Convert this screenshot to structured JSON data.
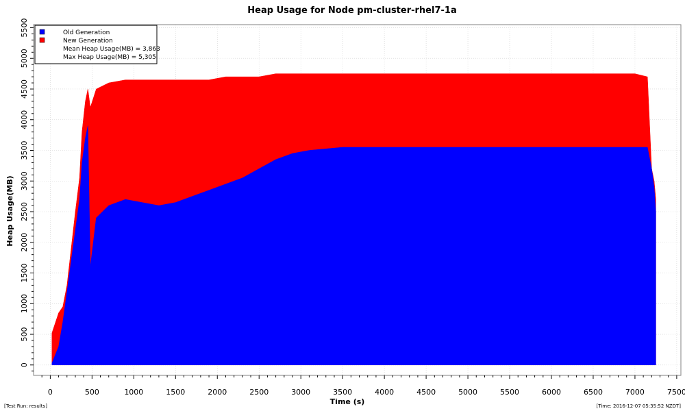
{
  "chart_data": {
    "type": "area",
    "title": "Heap Usage for Node pm-cluster-rhel7-1a",
    "xlabel": "Time (s)",
    "ylabel": "Heap Usage(MB)",
    "xlim": [
      -200,
      7550
    ],
    "ylim": [
      -170,
      5550
    ],
    "x_ticks": [
      0,
      500,
      1000,
      1500,
      2000,
      2500,
      3000,
      3500,
      4000,
      4500,
      5000,
      5500,
      6000,
      6500,
      7000,
      7500
    ],
    "y_ticks": [
      0,
      500,
      1000,
      1500,
      2000,
      2500,
      3000,
      3500,
      4000,
      4500,
      5000,
      5500
    ],
    "grid": true,
    "legend_position": "top-left",
    "series": [
      {
        "name": "Old Generation",
        "color": "#0000ff",
        "x": [
          20,
          100,
          150,
          200,
          250,
          300,
          350,
          380,
          420,
          450,
          480,
          550,
          700,
          900,
          1100,
          1300,
          1500,
          1700,
          1900,
          2100,
          2300,
          2500,
          2700,
          2900,
          3100,
          3500,
          4000,
          4500,
          5000,
          5500,
          6000,
          6500,
          7000,
          7150,
          7200,
          7230,
          7250
        ],
        "values": [
          30,
          300,
          700,
          1200,
          1700,
          2200,
          2700,
          3300,
          3700,
          3900,
          1600,
          2400,
          2600,
          2700,
          2650,
          2600,
          2650,
          2750,
          2850,
          2950,
          3050,
          3200,
          3350,
          3450,
          3500,
          3550,
          3550,
          3550,
          3550,
          3550,
          3550,
          3550,
          3550,
          3550,
          3200,
          2900,
          2500
        ]
      },
      {
        "name": "New Generation",
        "color": "#ff0000",
        "x": [
          20,
          100,
          150,
          200,
          250,
          300,
          350,
          380,
          420,
          450,
          480,
          550,
          700,
          900,
          1100,
          1300,
          1500,
          1700,
          1900,
          2100,
          2300,
          2500,
          2700,
          2900,
          3100,
          3500,
          4000,
          4500,
          5000,
          5500,
          6000,
          6500,
          7000,
          7150,
          7200,
          7230,
          7250
        ],
        "values": [
          520,
          850,
          950,
          1300,
          1900,
          2500,
          3050,
          3800,
          4300,
          4500,
          4200,
          4500,
          4600,
          4650,
          4650,
          4650,
          4650,
          4650,
          4650,
          4700,
          4700,
          4700,
          4750,
          4750,
          4750,
          4750,
          4750,
          4750,
          4750,
          4750,
          4750,
          4750,
          4750,
          4700,
          3200,
          3000,
          2700
        ]
      }
    ],
    "annotations": [
      "Mean Heap Usage(MB) = 3,863",
      "Max Heap Usage(MB) = 5,305"
    ]
  },
  "footer": {
    "left": "[Test Run: results]",
    "right": "[Time: 2016-12-07 05:35:52 NZDT]"
  }
}
